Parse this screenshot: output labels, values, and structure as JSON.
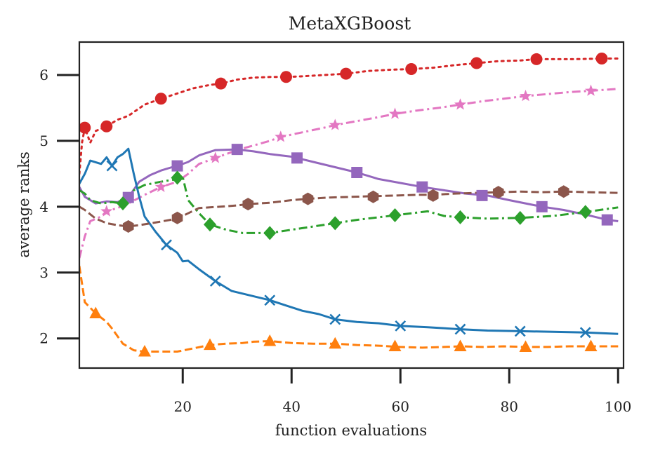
{
  "chart_data": {
    "type": "line",
    "title": "MetaXGBoost",
    "xlabel": "function evaluations",
    "ylabel": "average ranks",
    "xlim": [
      1,
      101
    ],
    "ylim": [
      1.55,
      6.5
    ],
    "x_ticks": [
      20,
      40,
      60,
      80,
      100
    ],
    "y_ticks": [
      2,
      3,
      4,
      5,
      6
    ],
    "grid": false,
    "legend": "none",
    "series": [
      {
        "color": "#d62728",
        "dash": "dotted",
        "marker": "circle",
        "points": [
          [
            1,
            4.5
          ],
          [
            1.5,
            4.98
          ],
          [
            2,
            5.2
          ],
          [
            3,
            4.97
          ],
          [
            4,
            5.15
          ],
          [
            6,
            5.22
          ],
          [
            8,
            5.32
          ],
          [
            10,
            5.38
          ],
          [
            13,
            5.55
          ],
          [
            16,
            5.64
          ],
          [
            19,
            5.72
          ],
          [
            22,
            5.8
          ],
          [
            25,
            5.85
          ],
          [
            27,
            5.87
          ],
          [
            30,
            5.93
          ],
          [
            33,
            5.96
          ],
          [
            36,
            5.97
          ],
          [
            39,
            5.97
          ],
          [
            42,
            5.98
          ],
          [
            46,
            6.0
          ],
          [
            50,
            6.02
          ],
          [
            54,
            6.06
          ],
          [
            58,
            6.08
          ],
          [
            62,
            6.09
          ],
          [
            66,
            6.11
          ],
          [
            70,
            6.15
          ],
          [
            74,
            6.18
          ],
          [
            78,
            6.21
          ],
          [
            82,
            6.22
          ],
          [
            85,
            6.24
          ],
          [
            88,
            6.24
          ],
          [
            92,
            6.24
          ],
          [
            97,
            6.25
          ],
          [
            100,
            6.25
          ]
        ],
        "markers": [
          [
            2,
            5.2
          ],
          [
            6,
            5.22
          ],
          [
            16,
            5.64
          ],
          [
            27,
            5.87
          ],
          [
            39,
            5.97
          ],
          [
            50,
            6.02
          ],
          [
            62,
            6.09
          ],
          [
            74,
            6.18
          ],
          [
            85,
            6.24
          ],
          [
            97,
            6.25
          ]
        ]
      },
      {
        "color": "#e377c2",
        "dash": "dashdot",
        "marker": "star",
        "points": [
          [
            1,
            3.22
          ],
          [
            2,
            3.55
          ],
          [
            3,
            3.78
          ],
          [
            5,
            3.85
          ],
          [
            6,
            3.93
          ],
          [
            8,
            3.98
          ],
          [
            10,
            4.05
          ],
          [
            13,
            4.18
          ],
          [
            16,
            4.3
          ],
          [
            19,
            4.38
          ],
          [
            21,
            4.5
          ],
          [
            23,
            4.65
          ],
          [
            26,
            4.74
          ],
          [
            30,
            4.86
          ],
          [
            33,
            4.93
          ],
          [
            36,
            5.0
          ],
          [
            38,
            5.06
          ],
          [
            42,
            5.13
          ],
          [
            46,
            5.2
          ],
          [
            48,
            5.24
          ],
          [
            52,
            5.3
          ],
          [
            56,
            5.36
          ],
          [
            59,
            5.41
          ],
          [
            63,
            5.46
          ],
          [
            67,
            5.5
          ],
          [
            71,
            5.55
          ],
          [
            75,
            5.6
          ],
          [
            79,
            5.64
          ],
          [
            83,
            5.68
          ],
          [
            87,
            5.71
          ],
          [
            91,
            5.74
          ],
          [
            95,
            5.76
          ],
          [
            100,
            5.79
          ]
        ],
        "markers": [
          [
            6,
            3.93
          ],
          [
            16,
            4.3
          ],
          [
            26,
            4.74
          ],
          [
            38,
            5.06
          ],
          [
            48,
            5.24
          ],
          [
            59,
            5.41
          ],
          [
            71,
            5.55
          ],
          [
            83,
            5.68
          ],
          [
            95,
            5.76
          ]
        ]
      },
      {
        "color": "#9467bd",
        "dash": "solid",
        "marker": "square",
        "points": [
          [
            1,
            4.3
          ],
          [
            2,
            4.15
          ],
          [
            4,
            4.05
          ],
          [
            6,
            4.08
          ],
          [
            8,
            4.07
          ],
          [
            10,
            4.14
          ],
          [
            12,
            4.38
          ],
          [
            14,
            4.48
          ],
          [
            16,
            4.55
          ],
          [
            18,
            4.6
          ],
          [
            19,
            4.62
          ],
          [
            21,
            4.68
          ],
          [
            23,
            4.78
          ],
          [
            26,
            4.86
          ],
          [
            30,
            4.87
          ],
          [
            33,
            4.84
          ],
          [
            36,
            4.8
          ],
          [
            40,
            4.76
          ],
          [
            41,
            4.74
          ],
          [
            44,
            4.68
          ],
          [
            48,
            4.6
          ],
          [
            52,
            4.52
          ],
          [
            56,
            4.42
          ],
          [
            60,
            4.36
          ],
          [
            64,
            4.3
          ],
          [
            68,
            4.25
          ],
          [
            72,
            4.2
          ],
          [
            76,
            4.17
          ],
          [
            80,
            4.1
          ],
          [
            86,
            4.0
          ],
          [
            90,
            3.95
          ],
          [
            94,
            3.88
          ],
          [
            98,
            3.8
          ],
          [
            100,
            3.78
          ]
        ],
        "markers": [
          [
            10,
            4.14
          ],
          [
            19,
            4.62
          ],
          [
            30,
            4.87
          ],
          [
            41,
            4.74
          ],
          [
            52,
            4.52
          ],
          [
            64,
            4.3
          ],
          [
            75,
            4.17
          ],
          [
            86,
            4.0
          ],
          [
            98,
            3.8
          ]
        ]
      },
      {
        "color": "#1f77b4",
        "dash": "solid",
        "marker": "x",
        "points": [
          [
            1,
            4.35
          ],
          [
            2,
            4.5
          ],
          [
            3,
            4.7
          ],
          [
            5,
            4.65
          ],
          [
            6,
            4.75
          ],
          [
            7,
            4.62
          ],
          [
            8,
            4.75
          ],
          [
            9,
            4.8
          ],
          [
            10,
            4.88
          ],
          [
            11,
            4.5
          ],
          [
            12,
            4.15
          ],
          [
            13,
            3.85
          ],
          [
            15,
            3.62
          ],
          [
            17,
            3.42
          ],
          [
            19,
            3.3
          ],
          [
            20,
            3.17
          ],
          [
            21,
            3.18
          ],
          [
            23,
            3.05
          ],
          [
            26,
            2.87
          ],
          [
            29,
            2.72
          ],
          [
            32,
            2.66
          ],
          [
            36,
            2.58
          ],
          [
            39,
            2.5
          ],
          [
            42,
            2.42
          ],
          [
            45,
            2.37
          ],
          [
            48,
            2.29
          ],
          [
            52,
            2.25
          ],
          [
            56,
            2.23
          ],
          [
            60,
            2.19
          ],
          [
            65,
            2.17
          ],
          [
            71,
            2.14
          ],
          [
            76,
            2.12
          ],
          [
            82,
            2.11
          ],
          [
            88,
            2.1
          ],
          [
            94,
            2.09
          ],
          [
            100,
            2.07
          ]
        ],
        "markers": [
          [
            7,
            4.62
          ],
          [
            17,
            3.42
          ],
          [
            26,
            2.87
          ],
          [
            36,
            2.58
          ],
          [
            48,
            2.29
          ],
          [
            60,
            2.19
          ],
          [
            71,
            2.14
          ],
          [
            82,
            2.11
          ],
          [
            94,
            2.09
          ]
        ]
      },
      {
        "color": "#2ca02c",
        "dash": "dashdot",
        "marker": "diamond",
        "points": [
          [
            1,
            4.25
          ],
          [
            2,
            4.2
          ],
          [
            3,
            4.1
          ],
          [
            5,
            4.05
          ],
          [
            7,
            4.07
          ],
          [
            9,
            4.05
          ],
          [
            11,
            4.25
          ],
          [
            13,
            4.33
          ],
          [
            16,
            4.38
          ],
          [
            19,
            4.42
          ],
          [
            20,
            4.45
          ],
          [
            21,
            4.1
          ],
          [
            23,
            3.9
          ],
          [
            25,
            3.73
          ],
          [
            28,
            3.65
          ],
          [
            31,
            3.6
          ],
          [
            36,
            3.6
          ],
          [
            40,
            3.65
          ],
          [
            44,
            3.7
          ],
          [
            48,
            3.75
          ],
          [
            52,
            3.8
          ],
          [
            56,
            3.84
          ],
          [
            59,
            3.87
          ],
          [
            63,
            3.91
          ],
          [
            65,
            3.93
          ],
          [
            68,
            3.86
          ],
          [
            71,
            3.84
          ],
          [
            76,
            3.82
          ],
          [
            82,
            3.83
          ],
          [
            88,
            3.86
          ],
          [
            94,
            3.92
          ],
          [
            100,
            3.99
          ]
        ],
        "markers": [
          [
            9,
            4.05
          ],
          [
            19,
            4.44
          ],
          [
            25,
            3.73
          ],
          [
            36,
            3.6
          ],
          [
            48,
            3.75
          ],
          [
            59,
            3.87
          ],
          [
            71,
            3.84
          ],
          [
            82,
            3.83
          ],
          [
            94,
            3.92
          ]
        ]
      },
      {
        "color": "#8c564b",
        "dash": "dashed",
        "marker": "hexagon",
        "points": [
          [
            1,
            4.0
          ],
          [
            2,
            3.95
          ],
          [
            4,
            3.82
          ],
          [
            6,
            3.75
          ],
          [
            8,
            3.72
          ],
          [
            10,
            3.7
          ],
          [
            12,
            3.72
          ],
          [
            15,
            3.76
          ],
          [
            19,
            3.82
          ],
          [
            21,
            3.9
          ],
          [
            23,
            3.98
          ],
          [
            27,
            4.0
          ],
          [
            30,
            4.02
          ],
          [
            32,
            4.04
          ],
          [
            36,
            4.06
          ],
          [
            40,
            4.1
          ],
          [
            43,
            4.12
          ],
          [
            47,
            4.14
          ],
          [
            51,
            4.15
          ],
          [
            55,
            4.16
          ],
          [
            59,
            4.17
          ],
          [
            63,
            4.18
          ],
          [
            66,
            4.18
          ],
          [
            70,
            4.2
          ],
          [
            74,
            4.21
          ],
          [
            78,
            4.22
          ],
          [
            82,
            4.23
          ],
          [
            86,
            4.22
          ],
          [
            90,
            4.23
          ],
          [
            95,
            4.22
          ],
          [
            100,
            4.21
          ]
        ],
        "markers": [
          [
            10,
            3.7
          ],
          [
            19,
            3.83
          ],
          [
            32,
            4.04
          ],
          [
            43,
            4.12
          ],
          [
            55,
            4.15
          ],
          [
            66,
            4.17
          ],
          [
            78,
            4.22
          ],
          [
            90,
            4.23
          ]
        ]
      },
      {
        "color": "#ff7f0e",
        "dash": "dashed",
        "marker": "triangle",
        "points": [
          [
            1,
            3.1
          ],
          [
            2,
            2.55
          ],
          [
            4,
            2.38
          ],
          [
            6,
            2.25
          ],
          [
            7,
            2.15
          ],
          [
            9,
            1.92
          ],
          [
            11,
            1.82
          ],
          [
            13,
            1.8
          ],
          [
            16,
            1.8
          ],
          [
            19,
            1.8
          ],
          [
            22,
            1.85
          ],
          [
            25,
            1.9
          ],
          [
            28,
            1.92
          ],
          [
            31,
            1.93
          ],
          [
            33,
            1.95
          ],
          [
            36,
            1.96
          ],
          [
            40,
            1.93
          ],
          [
            44,
            1.92
          ],
          [
            48,
            1.92
          ],
          [
            52,
            1.9
          ],
          [
            56,
            1.89
          ],
          [
            60,
            1.87
          ],
          [
            64,
            1.86
          ],
          [
            68,
            1.87
          ],
          [
            71,
            1.88
          ],
          [
            75,
            1.87
          ],
          [
            79,
            1.88
          ],
          [
            83,
            1.87
          ],
          [
            87,
            1.87
          ],
          [
            91,
            1.88
          ],
          [
            95,
            1.88
          ],
          [
            100,
            1.88
          ]
        ],
        "markers": [
          [
            4,
            2.38
          ],
          [
            13,
            1.8
          ],
          [
            25,
            1.9
          ],
          [
            36,
            1.96
          ],
          [
            48,
            1.92
          ],
          [
            59,
            1.88
          ],
          [
            71,
            1.88
          ],
          [
            83,
            1.87
          ],
          [
            95,
            1.88
          ]
        ]
      }
    ]
  }
}
